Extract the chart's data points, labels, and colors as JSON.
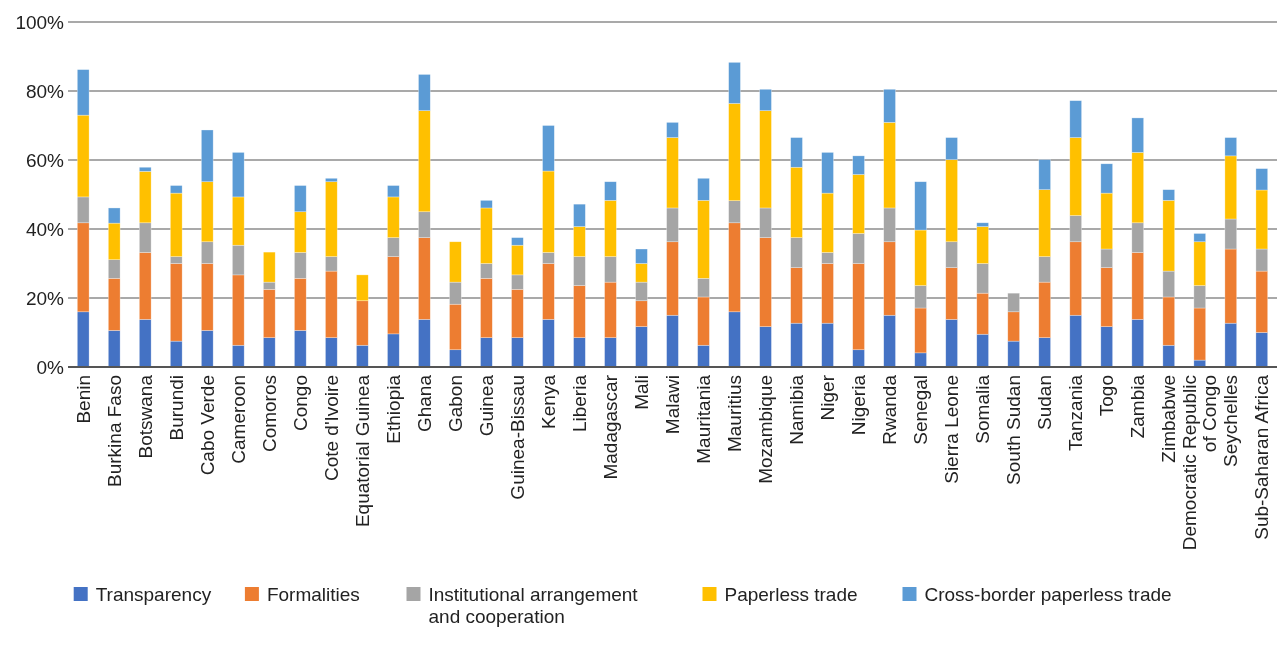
{
  "chart_data": {
    "type": "bar",
    "stacked": true,
    "categories": [
      "Benin",
      "Burkina Faso",
      "Botswana",
      "Burundi",
      "Cabo Verde",
      "Cameroon",
      "Comoros",
      "Congo",
      "Cote d'Ivoire",
      "Equatorial Guinea",
      "Ethiopia",
      "Ghana",
      "Gabon",
      "Guinea",
      "Guinea-Bissau",
      "Kenya",
      "Liberia",
      "Madagascar",
      "Mali",
      "Malawi",
      "Mauritania",
      "Mauritius",
      "Mozambique",
      "Namibia",
      "Niger",
      "Nigeria",
      "Rwanda",
      "Senegal",
      "Sierra Leone",
      "Somalia",
      "South Sudan",
      "Sudan",
      "Tanzania",
      "Togo",
      "Zambia",
      "Zimbabwe",
      "Democratic Republic of Congo",
      "Seychelles",
      "Sub-Saharan Africa"
    ],
    "series": [
      {
        "name": "Transparency",
        "color": "#4472c4",
        "values": [
          16.0,
          10.6,
          13.8,
          7.5,
          10.6,
          6.3,
          8.5,
          10.6,
          8.5,
          6.3,
          9.6,
          13.8,
          5.0,
          8.5,
          8.5,
          13.8,
          8.5,
          8.5,
          11.7,
          15.0,
          6.3,
          16.0,
          11.7,
          12.7,
          12.7,
          5.0,
          15.0,
          4.1,
          13.8,
          9.5,
          7.5,
          8.5,
          15.0,
          11.7,
          13.8,
          6.3,
          2.0,
          12.7,
          10.0
        ]
      },
      {
        "name": "Formalities",
        "color": "#ed7d31",
        "values": [
          25.8,
          15.1,
          19.4,
          22.5,
          19.4,
          20.4,
          14.0,
          15.1,
          19.3,
          12.9,
          22.4,
          23.7,
          13.2,
          17.2,
          14.0,
          16.2,
          15.1,
          16.1,
          7.5,
          21.3,
          14.0,
          25.8,
          25.8,
          16.1,
          17.3,
          25.0,
          21.3,
          13.0,
          15.0,
          11.9,
          8.5,
          16.1,
          21.3,
          17.1,
          19.4,
          14.0,
          15.1,
          21.5,
          17.8
        ]
      },
      {
        "name": "Institutional arrangement and cooperation",
        "color": "#a5a5a5",
        "values": [
          7.5,
          5.4,
          8.6,
          2.0,
          6.3,
          8.6,
          2.1,
          7.5,
          4.2,
          0,
          5.5,
          7.5,
          6.4,
          4.3,
          4.2,
          3.2,
          8.4,
          7.4,
          5.4,
          9.8,
          5.4,
          6.4,
          8.6,
          8.7,
          3.2,
          8.7,
          9.8,
          6.5,
          7.5,
          8.6,
          5.4,
          7.4,
          7.6,
          5.4,
          8.6,
          7.5,
          6.5,
          8.7,
          6.4
        ]
      },
      {
        "name": "Paperless trade",
        "color": "#ffc000",
        "values": [
          23.7,
          10.6,
          14.9,
          18.4,
          17.4,
          14.0,
          8.7,
          11.8,
          21.7,
          7.5,
          11.8,
          29.3,
          11.7,
          16.1,
          8.6,
          23.6,
          8.7,
          16.3,
          5.4,
          20.4,
          22.6,
          28.2,
          28.2,
          20.4,
          17.2,
          17.1,
          24.8,
          16.1,
          23.8,
          10.7,
          0,
          19.4,
          22.6,
          16.2,
          20.4,
          20.5,
          12.7,
          18.3,
          17.1
        ]
      },
      {
        "name": "Cross-border paperless trade",
        "color": "#5b9bd5",
        "values": [
          13.2,
          4.4,
          1.2,
          2.2,
          15.0,
          12.9,
          0,
          7.6,
          1.0,
          0,
          3.3,
          10.5,
          0,
          2.2,
          2.2,
          13.2,
          6.5,
          5.4,
          4.2,
          4.4,
          6.4,
          11.9,
          6.2,
          8.6,
          11.8,
          5.4,
          9.6,
          14.0,
          6.4,
          1.1,
          0,
          8.7,
          10.7,
          8.5,
          10.0,
          3.1,
          2.4,
          5.3,
          6.2
        ]
      }
    ],
    "ylim": [
      0,
      100
    ],
    "yticks": [
      {
        "value": 0,
        "label": "0%"
      },
      {
        "value": 20,
        "label": "20%"
      },
      {
        "value": 40,
        "label": "40%"
      },
      {
        "value": 60,
        "label": "60%"
      },
      {
        "value": 80,
        "label": "80%"
      },
      {
        "value": 100,
        "label": "100%"
      }
    ],
    "grid": "y",
    "legend": "bottom"
  }
}
